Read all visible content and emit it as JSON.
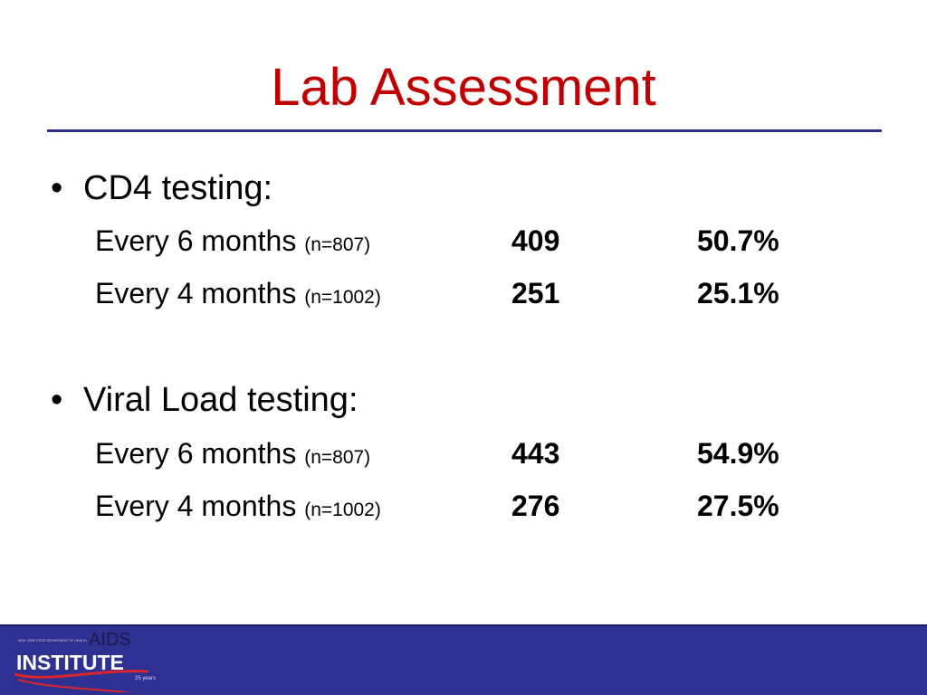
{
  "slide": {
    "title": "Lab Assessment"
  },
  "sections": [
    {
      "bullet": "•",
      "heading": "CD4 testing:",
      "rows": [
        {
          "label": "Every 6 months ",
          "n": "(n=807)",
          "count": "409",
          "percent": "50.7%"
        },
        {
          "label": "Every 4 months ",
          "n": "(n=1002)",
          "count": "251",
          "percent": "25.1%"
        }
      ]
    },
    {
      "bullet": "•",
      "heading": "Viral Load testing:",
      "rows": [
        {
          "label": "Every 6 months ",
          "n": "(n=807)",
          "count": "443",
          "percent": "54.9%"
        },
        {
          "label": "Every 4 months ",
          "n": "(n=1002)",
          "count": "276",
          "percent": "27.5%"
        }
      ]
    }
  ],
  "footer": {
    "logo_text_top": "AIDS",
    "logo_text_main": "INSTITUTE",
    "logo_text_small": "25 years",
    "logo_text_tiny": "NEW YORK STATE DEPARTMENT OF HEALTH"
  },
  "colors": {
    "title": "#c00000",
    "rule": "#2b2e8f",
    "footer": "#2e3192",
    "logo_swoosh": "#d7262d"
  }
}
